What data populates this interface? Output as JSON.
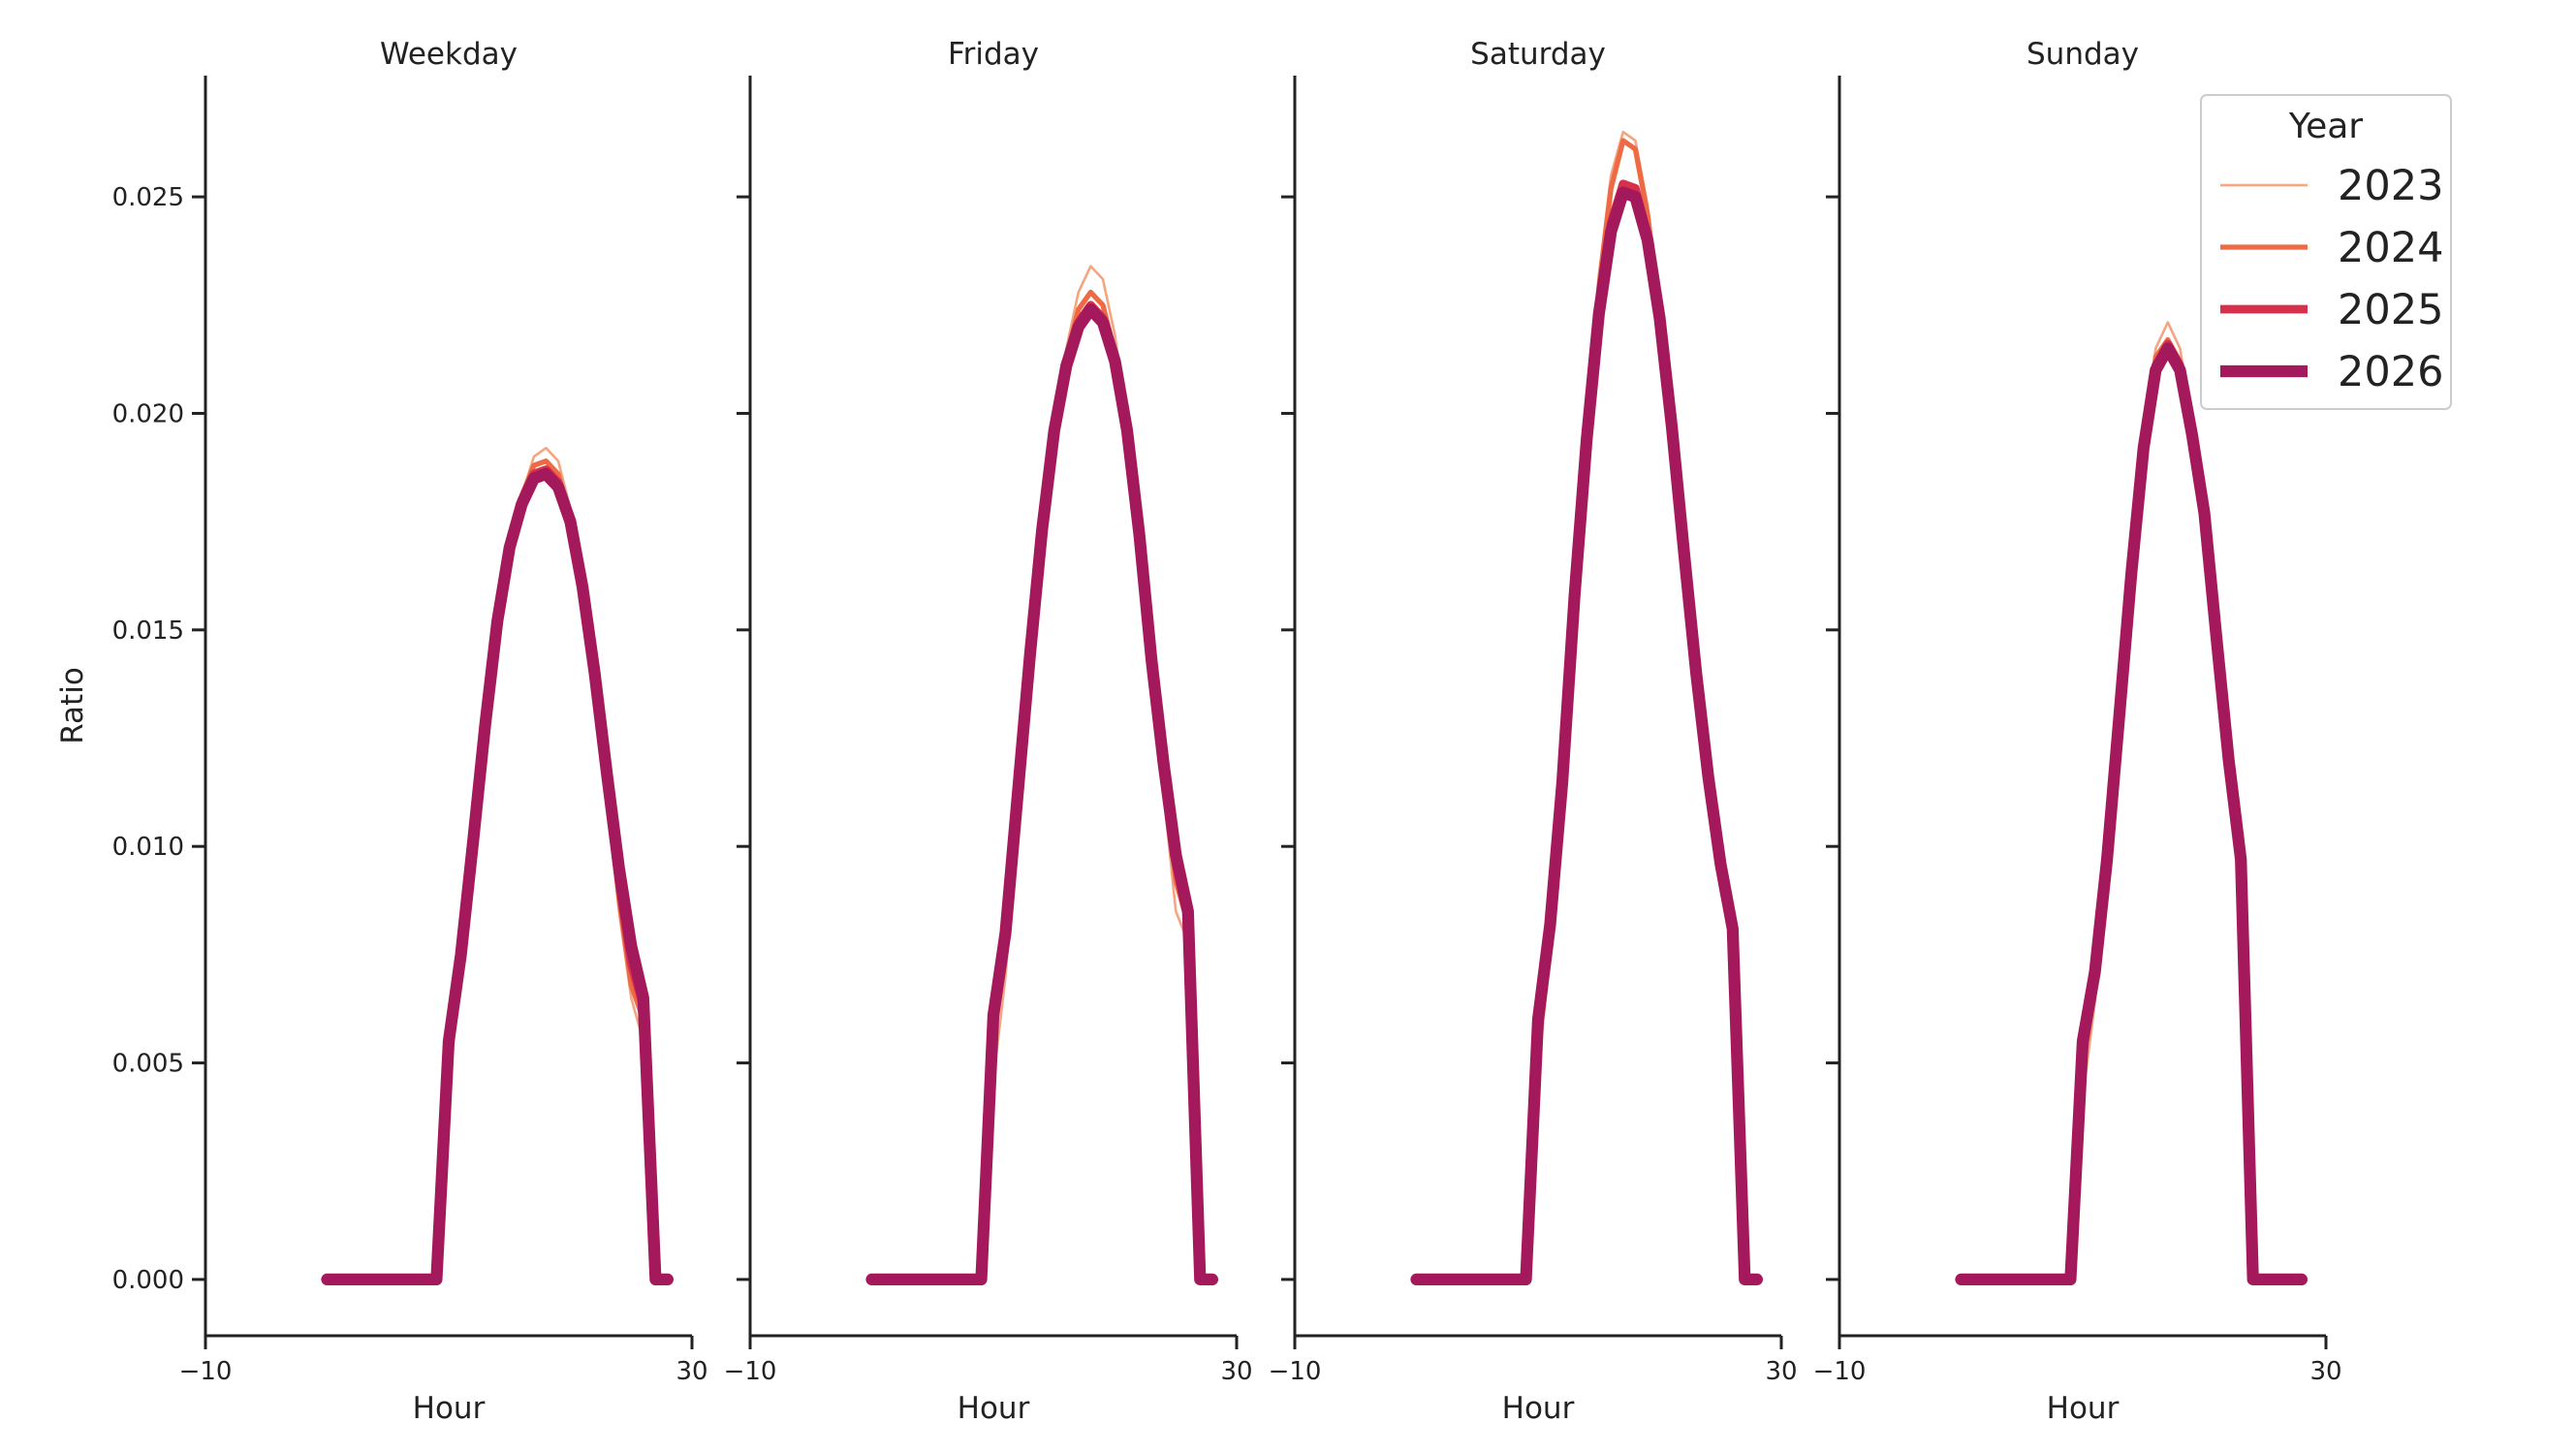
{
  "chart_data": {
    "type": "line",
    "ylabel": "Ratio",
    "ylim": [
      -0.0013,
      0.0278
    ],
    "yticks": [
      0.0,
      0.005,
      0.01,
      0.015,
      0.02,
      0.025
    ],
    "ytick_labels": [
      "0.000",
      "0.005",
      "0.010",
      "0.015",
      "0.020",
      "0.025"
    ],
    "xlim": [
      -10,
      30
    ],
    "xticks": [
      -10,
      30
    ],
    "xtick_labels": [
      "−10",
      "30"
    ],
    "legend": {
      "title": "Year",
      "position": "top-right"
    },
    "series_styles": [
      {
        "name": "2023",
        "color": "#f4a582",
        "width": 1.5
      },
      {
        "name": "2024",
        "color": "#ee6a44",
        "width": 3
      },
      {
        "name": "2025",
        "color": "#d6304d",
        "width": 5
      },
      {
        "name": "2026",
        "color": "#a3195b",
        "width": 7
      }
    ],
    "panels": [
      {
        "title": "Weekday",
        "xlabel": "Hour",
        "x": [
          0,
          1,
          2,
          3,
          4,
          5,
          6,
          7,
          8,
          9,
          10,
          11,
          12,
          13,
          14,
          15,
          16,
          17,
          18,
          19,
          20,
          21,
          22,
          23,
          24,
          25,
          26,
          27,
          28,
          29,
          30
        ],
        "series": [
          {
            "name": "2023",
            "values": [
              0.0,
              0.0,
              0.0,
              0.0,
              0.0,
              0.0,
              0.0,
              0.0,
              0.0,
              0.0,
              0.0045,
              0.007,
              0.0095,
              0.0125,
              0.015,
              0.0168,
              0.0181,
              0.019,
              0.0192,
              0.0189,
              0.0178,
              0.016,
              0.0138,
              0.0112,
              0.0085,
              0.0065,
              0.0055,
              0.0,
              0.0,
              null,
              null
            ]
          },
          {
            "name": "2024",
            "values": [
              0.0,
              0.0,
              0.0,
              0.0,
              0.0,
              0.0,
              0.0,
              0.0,
              0.0,
              0.0,
              0.005,
              0.0072,
              0.0098,
              0.0128,
              0.0152,
              0.0169,
              0.0181,
              0.0188,
              0.0189,
              0.0186,
              0.0176,
              0.016,
              0.0138,
              0.0113,
              0.0088,
              0.0068,
              0.006,
              0.0,
              0.0,
              null,
              null
            ]
          },
          {
            "name": "2025",
            "values": [
              0.0,
              0.0,
              0.0,
              0.0,
              0.0,
              0.0,
              0.0,
              0.0,
              0.0,
              0.0,
              0.0054,
              0.0074,
              0.01,
              0.0128,
              0.0152,
              0.0169,
              0.018,
              0.0186,
              0.0187,
              0.0184,
              0.0175,
              0.016,
              0.0139,
              0.0115,
              0.0092,
              0.0073,
              0.0063,
              0.0,
              0.0,
              null,
              null
            ]
          },
          {
            "name": "2026",
            "values": [
              0.0,
              0.0,
              0.0,
              0.0,
              0.0,
              0.0,
              0.0,
              0.0,
              0.0,
              0.0,
              0.0055,
              0.0075,
              0.0101,
              0.0128,
              0.0152,
              0.0169,
              0.0179,
              0.0185,
              0.0186,
              0.0183,
              0.0175,
              0.016,
              0.014,
              0.0117,
              0.0095,
              0.0077,
              0.0065,
              0.0,
              0.0,
              null,
              null
            ]
          }
        ]
      },
      {
        "title": "Friday",
        "xlabel": "Hour",
        "x": [
          0,
          1,
          2,
          3,
          4,
          5,
          6,
          7,
          8,
          9,
          10,
          11,
          12,
          13,
          14,
          15,
          16,
          17,
          18,
          19,
          20,
          21,
          22,
          23,
          24,
          25,
          26,
          27,
          28,
          29,
          30
        ],
        "series": [
          {
            "name": "2023",
            "values": [
              0.0,
              0.0,
              0.0,
              0.0,
              0.0,
              0.0,
              0.0,
              0.0,
              0.0,
              0.0,
              0.0046,
              0.007,
              0.0105,
              0.0142,
              0.0173,
              0.0198,
              0.0215,
              0.0228,
              0.0234,
              0.0231,
              0.0218,
              0.0198,
              0.0172,
              0.014,
              0.0112,
              0.0085,
              0.0078,
              0.0,
              0.0,
              null,
              null
            ]
          },
          {
            "name": "2024",
            "values": [
              0.0,
              0.0,
              0.0,
              0.0,
              0.0,
              0.0,
              0.0,
              0.0,
              0.0,
              0.0,
              0.0055,
              0.0076,
              0.0109,
              0.0143,
              0.0173,
              0.0197,
              0.0213,
              0.0224,
              0.0228,
              0.0225,
              0.0214,
              0.0196,
              0.0171,
              0.0141,
              0.0115,
              0.0092,
              0.0082,
              0.0,
              0.0,
              null,
              null
            ]
          },
          {
            "name": "2025",
            "values": [
              0.0,
              0.0,
              0.0,
              0.0,
              0.0,
              0.0,
              0.0,
              0.0,
              0.0,
              0.0,
              0.006,
              0.0079,
              0.0111,
              0.0143,
              0.0173,
              0.0196,
              0.0212,
              0.0221,
              0.0225,
              0.0222,
              0.0213,
              0.0196,
              0.0171,
              0.0142,
              0.0118,
              0.0097,
              0.0084,
              0.0,
              0.0,
              null,
              null
            ]
          },
          {
            "name": "2026",
            "values": [
              0.0,
              0.0,
              0.0,
              0.0,
              0.0,
              0.0,
              0.0,
              0.0,
              0.0,
              0.0,
              0.0061,
              0.008,
              0.0112,
              0.0144,
              0.0173,
              0.0196,
              0.0211,
              0.022,
              0.0224,
              0.0221,
              0.0212,
              0.0196,
              0.0172,
              0.0143,
              0.0119,
              0.0098,
              0.0085,
              0.0,
              0.0,
              null,
              null
            ]
          }
        ]
      },
      {
        "title": "Saturday",
        "xlabel": "Hour",
        "x": [
          0,
          1,
          2,
          3,
          4,
          5,
          6,
          7,
          8,
          9,
          10,
          11,
          12,
          13,
          14,
          15,
          16,
          17,
          18,
          19,
          20,
          21,
          22,
          23,
          24,
          25,
          26,
          27,
          28,
          29,
          30
        ],
        "series": [
          {
            "name": "2023",
            "values": [
              0.0,
              0.0,
              0.0,
              0.0,
              0.0,
              0.0,
              0.0,
              0.0,
              0.0,
              0.0,
              0.0048,
              0.0075,
              0.0112,
              0.0158,
              0.0198,
              0.0232,
              0.0255,
              0.0265,
              0.0263,
              0.0248,
              0.0225,
              0.0198,
              0.0167,
              0.0138,
              0.0112,
              0.009,
              0.0077,
              0.0,
              0.0,
              null,
              null
            ]
          },
          {
            "name": "2024",
            "values": [
              0.0,
              0.0,
              0.0,
              0.0,
              0.0,
              0.0,
              0.0,
              0.0,
              0.0,
              0.0,
              0.0053,
              0.0078,
              0.0113,
              0.0158,
              0.0197,
              0.0229,
              0.0252,
              0.0263,
              0.0261,
              0.0246,
              0.0224,
              0.0197,
              0.0167,
              0.0138,
              0.0113,
              0.0093,
              0.0079,
              0.0,
              0.0,
              null,
              null
            ]
          },
          {
            "name": "2025",
            "values": [
              0.0,
              0.0,
              0.0,
              0.0,
              0.0,
              0.0,
              0.0,
              0.0,
              0.0,
              0.0,
              0.0058,
              0.0081,
              0.0114,
              0.0158,
              0.0195,
              0.0225,
              0.0244,
              0.0253,
              0.0252,
              0.0241,
              0.0222,
              0.0197,
              0.0168,
              0.0139,
              0.0115,
              0.0095,
              0.008,
              0.0,
              0.0,
              null,
              null
            ]
          },
          {
            "name": "2026",
            "values": [
              0.0,
              0.0,
              0.0,
              0.0,
              0.0,
              0.0,
              0.0,
              0.0,
              0.0,
              0.0,
              0.006,
              0.0082,
              0.0115,
              0.0158,
              0.0194,
              0.0223,
              0.0242,
              0.0251,
              0.025,
              0.024,
              0.0222,
              0.0197,
              0.0168,
              0.014,
              0.0116,
              0.0096,
              0.0081,
              0.0,
              0.0,
              null,
              null
            ]
          }
        ]
      },
      {
        "title": "Sunday",
        "xlabel": "Hour",
        "x": [
          0,
          1,
          2,
          3,
          4,
          5,
          6,
          7,
          8,
          9,
          10,
          11,
          12,
          13,
          14,
          15,
          16,
          17,
          18,
          19,
          20,
          21,
          22,
          23,
          24,
          25,
          26,
          27,
          28,
          29,
          30
        ],
        "series": [
          {
            "name": "2023",
            "values": [
              0.0,
              0.0,
              0.0,
              0.0,
              0.0,
              0.0,
              0.0,
              0.0,
              0.0,
              0.0,
              0.0042,
              0.0064,
              0.0093,
              0.0128,
              0.0162,
              0.0194,
              0.0215,
              0.0221,
              0.0215,
              0.0198,
              0.0178,
              0.015,
              0.0126,
              0.0105,
              0.0,
              0.0,
              0.0,
              0.0,
              0.0,
              null,
              null
            ]
          },
          {
            "name": "2024",
            "values": [
              0.0,
              0.0,
              0.0,
              0.0,
              0.0,
              0.0,
              0.0,
              0.0,
              0.0,
              0.0,
              0.0048,
              0.0068,
              0.0095,
              0.0128,
              0.0162,
              0.0193,
              0.0213,
              0.0217,
              0.0212,
              0.0196,
              0.0177,
              0.015,
              0.0125,
              0.0102,
              0.0,
              0.0,
              0.0,
              0.0,
              0.0,
              null,
              null
            ]
          },
          {
            "name": "2025",
            "values": [
              0.0,
              0.0,
              0.0,
              0.0,
              0.0,
              0.0,
              0.0,
              0.0,
              0.0,
              0.0,
              0.0053,
              0.007,
              0.0096,
              0.0129,
              0.0162,
              0.0192,
              0.0211,
              0.0216,
              0.0211,
              0.0195,
              0.0177,
              0.0149,
              0.0122,
              0.0099,
              0.0,
              0.0,
              0.0,
              0.0,
              0.0,
              null,
              null
            ]
          },
          {
            "name": "2026",
            "values": [
              0.0,
              0.0,
              0.0,
              0.0,
              0.0,
              0.0,
              0.0,
              0.0,
              0.0,
              0.0,
              0.0055,
              0.0071,
              0.0097,
              0.013,
              0.0163,
              0.0192,
              0.021,
              0.0215,
              0.021,
              0.0195,
              0.0177,
              0.0148,
              0.012,
              0.0097,
              0.0,
              0.0,
              0.0,
              0.0,
              0.0,
              null,
              null
            ]
          }
        ]
      }
    ]
  }
}
